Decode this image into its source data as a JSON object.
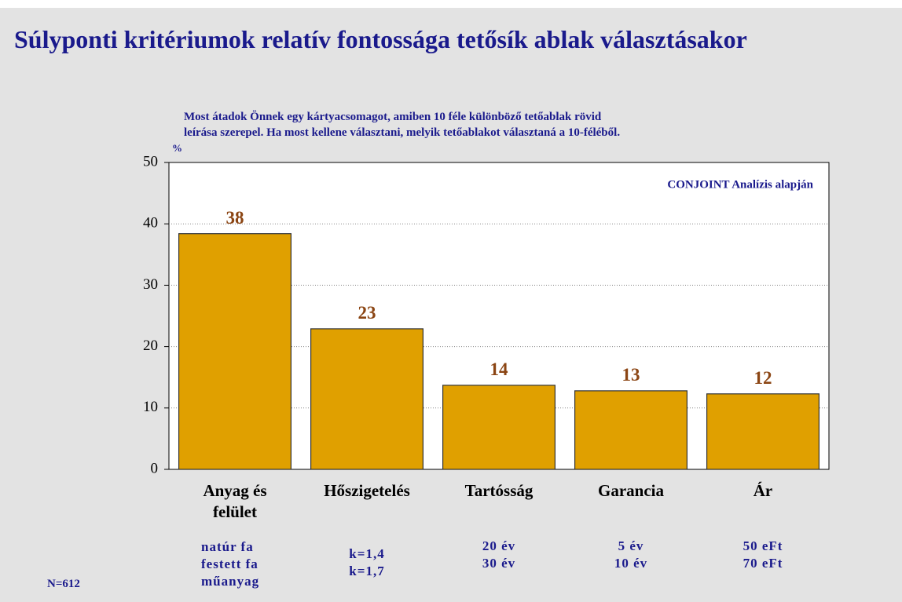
{
  "chart_data": {
    "type": "bar",
    "title": "Súlyponti kritériumok relatív fontossága tetősík ablak választásakor",
    "subtitle": [
      "Most átadok Önnek egy kártyacsomagot, amiben 10 féle különböző tetőablak rövid",
      "leírása szerepel. Ha most kellene választani, melyik tetőablakot választaná a 10-féléből."
    ],
    "y_label": "%",
    "annotation": "CONJOINT Analízis alapján",
    "note": "N=612",
    "categories": [
      "Anyag és felület",
      "Hőszigetelés",
      "Tartósság",
      "Garancia",
      "Ár"
    ],
    "levels": [
      [
        "natúr fa",
        "festett fa",
        "műanyag"
      ],
      [
        "k=1,4",
        "k=1,7"
      ],
      [
        "20 év",
        "30 év"
      ],
      [
        "5 év",
        "10 év"
      ],
      [
        "50 eFt",
        "70 eFt"
      ]
    ],
    "values": [
      38.4,
      22.9,
      13.7,
      12.8,
      12.3
    ],
    "value_labels": [
      "38",
      "23",
      "14",
      "13",
      "12"
    ],
    "color": "#e0a000",
    "ylim": [
      0,
      50
    ],
    "yticks": [
      0,
      10,
      20,
      30,
      40,
      50
    ],
    "grid": true
  }
}
